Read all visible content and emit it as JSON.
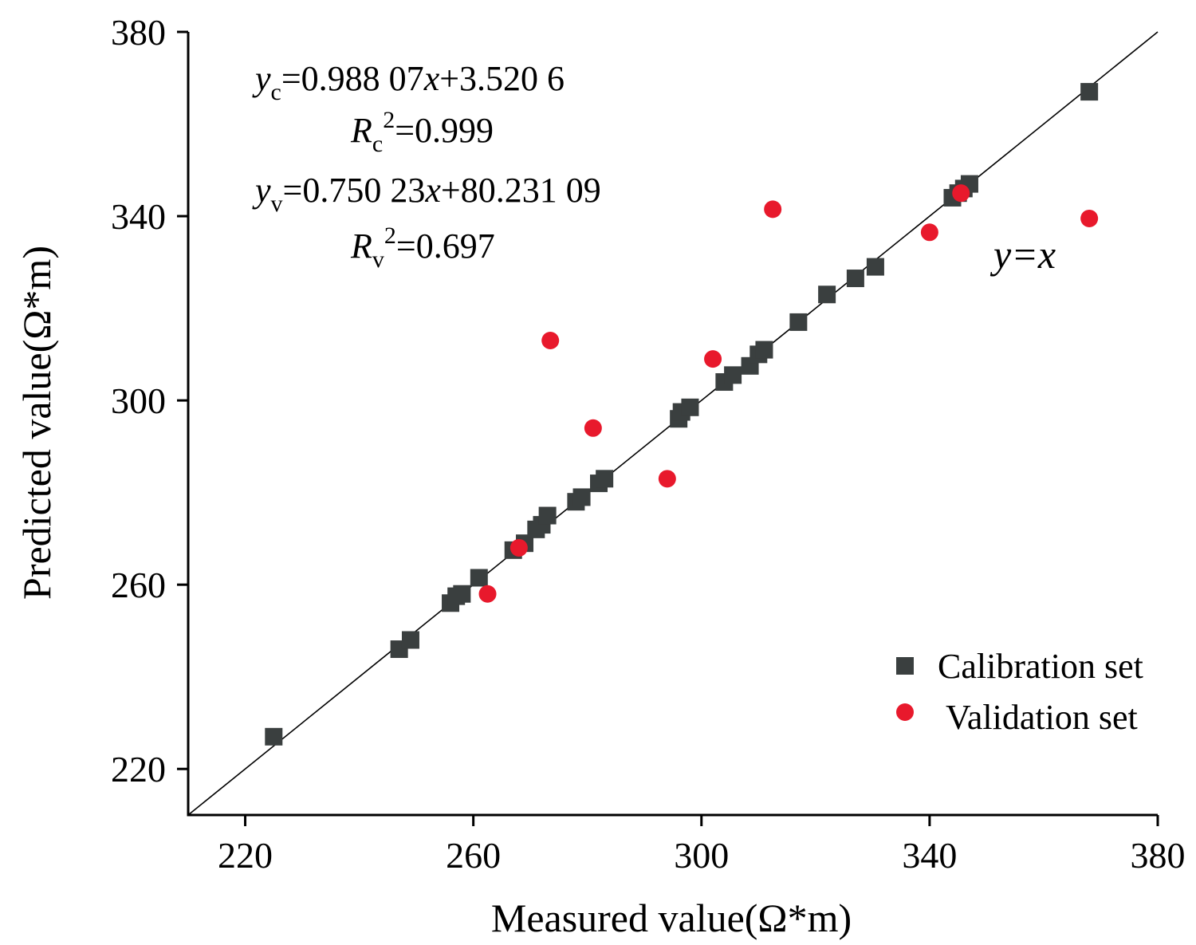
{
  "chart_data": {
    "type": "scatter",
    "xlabel": "Measured value(Ω*m)",
    "ylabel": "Predicted value(Ω*m)",
    "xlim": [
      210,
      380
    ],
    "ylim": [
      210,
      380
    ],
    "xticks": [
      220,
      260,
      300,
      340,
      380
    ],
    "yticks": [
      220,
      260,
      300,
      340,
      380
    ],
    "grid": false,
    "legend_position": "bottom-right",
    "reference_line": {
      "label": "y=x",
      "slope": 1,
      "intercept": 0,
      "color": "#000000"
    },
    "annotations": [
      "yc=0.988 07x+3.520 6",
      "Rc2=0.999",
      "yv=0.750 23x+80.231 09",
      "Rv2=0.697"
    ],
    "series": [
      {
        "name": "Calibration set",
        "marker": "square",
        "color": "#3a3f3f",
        "points": [
          [
            225,
            227
          ],
          [
            247,
            246
          ],
          [
            249,
            248
          ],
          [
            256,
            256
          ],
          [
            257,
            257.5
          ],
          [
            258,
            258
          ],
          [
            261,
            261.5
          ],
          [
            267,
            267.5
          ],
          [
            269,
            269
          ],
          [
            271,
            272
          ],
          [
            272,
            273
          ],
          [
            273,
            275
          ],
          [
            278,
            278
          ],
          [
            279,
            279
          ],
          [
            282,
            282
          ],
          [
            283,
            283
          ],
          [
            296,
            296
          ],
          [
            296.5,
            297.5
          ],
          [
            298,
            298.5
          ],
          [
            304,
            304
          ],
          [
            305.5,
            305.5
          ],
          [
            308.5,
            307.5
          ],
          [
            310,
            310
          ],
          [
            311,
            311
          ],
          [
            317,
            317
          ],
          [
            322,
            323
          ],
          [
            327,
            326.5
          ],
          [
            330.5,
            329
          ],
          [
            344,
            344
          ],
          [
            345,
            345
          ],
          [
            346,
            346
          ],
          [
            347,
            347
          ],
          [
            368,
            367
          ]
        ]
      },
      {
        "name": "Validation set",
        "marker": "circle",
        "color": "#e8192c",
        "points": [
          [
            262.5,
            258
          ],
          [
            268,
            268
          ],
          [
            273.5,
            313
          ],
          [
            281,
            294
          ],
          [
            294,
            283
          ],
          [
            302,
            309
          ],
          [
            312.5,
            341.5
          ],
          [
            340,
            336.5
          ],
          [
            345.5,
            345
          ],
          [
            368,
            339.5
          ]
        ]
      }
    ]
  },
  "colors": {
    "axis": "#000000",
    "calibration": "#3a3f3f",
    "validation": "#e8192c"
  }
}
